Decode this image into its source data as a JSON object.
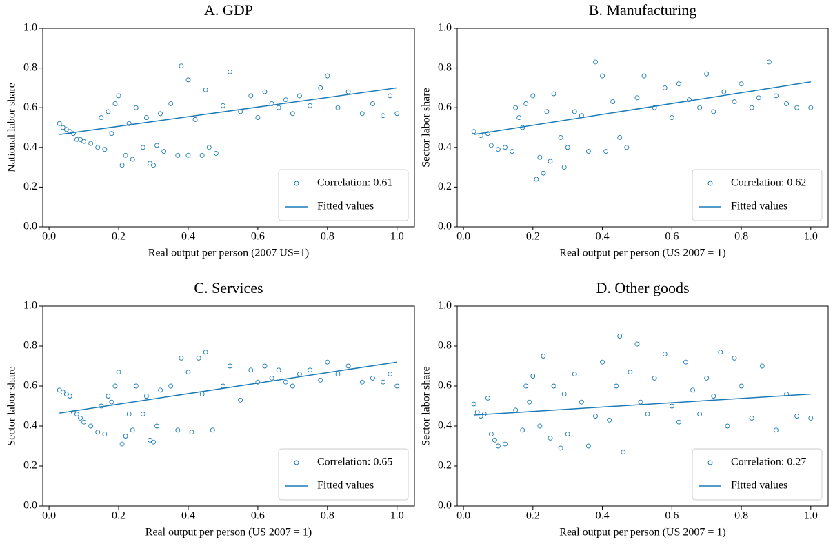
{
  "chart_data": [
    {
      "type": "scatter",
      "title": "A. GDP",
      "xlabel": "Real output per person (2007 US=1)",
      "ylabel": "National labor share",
      "xlim": [
        -0.018,
        1.05
      ],
      "ylim": [
        0,
        1
      ],
      "xticks": [
        {
          "value": 0,
          "label": "0.0"
        },
        0.2,
        0.4,
        0.6,
        0.8,
        {
          "value": 1,
          "label": "1.0"
        }
      ],
      "yticks": [
        {
          "value": 0,
          "label": "0.0"
        },
        0.2,
        0.4,
        0.6,
        0.8,
        {
          "value": 1,
          "label": "1.0"
        }
      ],
      "legend": "lower right",
      "series": [
        {
          "name": "Correlation: 0.61",
          "color": "#1a7ab5",
          "marker": "open-circle",
          "x": [
            0.03,
            0.04,
            0.05,
            0.06,
            0.07,
            0.08,
            0.09,
            0.1,
            0.12,
            0.14,
            0.16,
            0.15,
            0.17,
            0.18,
            0.19,
            0.2,
            0.21,
            0.22,
            0.23,
            0.24,
            0.25,
            0.27,
            0.28,
            0.29,
            0.3,
            0.31,
            0.32,
            0.33,
            0.35,
            0.37,
            0.38,
            0.4,
            0.4,
            0.42,
            0.44,
            0.45,
            0.46,
            0.48,
            0.5,
            0.52,
            0.55,
            0.58,
            0.6,
            0.62,
            0.64,
            0.66,
            0.68,
            0.7,
            0.72,
            0.75,
            0.78,
            0.8,
            0.83,
            0.86,
            0.9,
            0.93,
            0.96,
            0.98,
            1.0
          ],
          "values": [
            0.52,
            0.5,
            0.49,
            0.48,
            0.47,
            0.44,
            0.44,
            0.43,
            0.42,
            0.4,
            0.39,
            0.55,
            0.58,
            0.47,
            0.62,
            0.66,
            0.31,
            0.36,
            0.52,
            0.34,
            0.6,
            0.4,
            0.55,
            0.32,
            0.31,
            0.41,
            0.57,
            0.38,
            0.62,
            0.36,
            0.81,
            0.74,
            0.36,
            0.54,
            0.36,
            0.69,
            0.4,
            0.37,
            0.61,
            0.78,
            0.58,
            0.66,
            0.55,
            0.68,
            0.62,
            0.6,
            0.64,
            0.57,
            0.66,
            0.61,
            0.7,
            0.76,
            0.6,
            0.68,
            0.57,
            0.62,
            0.56,
            0.66,
            0.57
          ]
        },
        {
          "name": "Fitted values",
          "color": "#1a7ab5",
          "type": "line",
          "x": [
            0.03,
            1.0
          ],
          "values": [
            0.465,
            0.7
          ]
        }
      ]
    },
    {
      "type": "scatter",
      "title": "B. Manufacturing",
      "xlabel": "Real output per person (US 2007 = 1)",
      "ylabel": "Sector labor share",
      "xlim": [
        -0.018,
        1.05
      ],
      "ylim": [
        0,
        1
      ],
      "xticks": [
        {
          "value": 0,
          "label": "0.0"
        },
        0.2,
        0.4,
        0.6,
        0.8,
        {
          "value": 1,
          "label": "1.0"
        }
      ],
      "yticks": [
        {
          "value": 0,
          "label": "0.0"
        },
        0.2,
        0.4,
        0.6,
        0.8,
        {
          "value": 1,
          "label": "1.0"
        }
      ],
      "legend": "lower right",
      "series": [
        {
          "name": "Correlation: 0.62",
          "color": "#1a7ab5",
          "marker": "open-circle",
          "x": [
            0.03,
            0.05,
            0.07,
            0.08,
            0.1,
            0.12,
            0.14,
            0.15,
            0.16,
            0.17,
            0.18,
            0.2,
            0.21,
            0.22,
            0.23,
            0.24,
            0.25,
            0.26,
            0.28,
            0.29,
            0.3,
            0.32,
            0.34,
            0.36,
            0.38,
            0.4,
            0.41,
            0.43,
            0.45,
            0.47,
            0.5,
            0.52,
            0.55,
            0.58,
            0.6,
            0.62,
            0.65,
            0.68,
            0.7,
            0.72,
            0.75,
            0.78,
            0.8,
            0.83,
            0.85,
            0.88,
            0.9,
            0.93,
            0.96,
            1.0
          ],
          "values": [
            0.48,
            0.46,
            0.47,
            0.41,
            0.39,
            0.4,
            0.38,
            0.6,
            0.55,
            0.5,
            0.62,
            0.66,
            0.24,
            0.35,
            0.27,
            0.58,
            0.33,
            0.67,
            0.45,
            0.3,
            0.4,
            0.58,
            0.56,
            0.38,
            0.83,
            0.76,
            0.38,
            0.63,
            0.45,
            0.4,
            0.65,
            0.76,
            0.6,
            0.7,
            0.55,
            0.72,
            0.64,
            0.6,
            0.77,
            0.58,
            0.68,
            0.63,
            0.72,
            0.6,
            0.65,
            0.83,
            0.66,
            0.62,
            0.6,
            0.6
          ]
        },
        {
          "name": "Fitted values",
          "color": "#1a7ab5",
          "type": "line",
          "x": [
            0.03,
            1.0
          ],
          "values": [
            0.465,
            0.73
          ]
        }
      ]
    },
    {
      "type": "scatter",
      "title": "C. Services",
      "xlabel": "Real output per person (US 2007 = 1)",
      "ylabel": "Sector labor share",
      "xlim": [
        -0.018,
        1.05
      ],
      "ylim": [
        0,
        1
      ],
      "xticks": [
        {
          "value": 0,
          "label": "0.0"
        },
        0.2,
        0.4,
        0.6,
        0.8,
        {
          "value": 1,
          "label": "1.0"
        }
      ],
      "yticks": [
        {
          "value": 0,
          "label": "0.0"
        },
        0.2,
        0.4,
        0.6,
        0.8,
        {
          "value": 1,
          "label": "1.0"
        }
      ],
      "legend": "lower right",
      "series": [
        {
          "name": "Correlation: 0.65",
          "color": "#1a7ab5",
          "marker": "open-circle",
          "x": [
            0.03,
            0.04,
            0.05,
            0.06,
            0.07,
            0.08,
            0.09,
            0.1,
            0.12,
            0.14,
            0.16,
            0.15,
            0.17,
            0.18,
            0.19,
            0.2,
            0.21,
            0.22,
            0.23,
            0.24,
            0.25,
            0.27,
            0.28,
            0.29,
            0.3,
            0.31,
            0.32,
            0.35,
            0.37,
            0.38,
            0.4,
            0.41,
            0.43,
            0.44,
            0.45,
            0.47,
            0.5,
            0.52,
            0.55,
            0.58,
            0.6,
            0.62,
            0.64,
            0.66,
            0.68,
            0.7,
            0.72,
            0.75,
            0.78,
            0.8,
            0.83,
            0.86,
            0.9,
            0.93,
            0.96,
            0.98,
            1.0
          ],
          "values": [
            0.58,
            0.57,
            0.56,
            0.55,
            0.47,
            0.46,
            0.44,
            0.42,
            0.4,
            0.37,
            0.36,
            0.5,
            0.55,
            0.52,
            0.6,
            0.67,
            0.31,
            0.35,
            0.46,
            0.38,
            0.6,
            0.46,
            0.55,
            0.33,
            0.32,
            0.4,
            0.58,
            0.6,
            0.38,
            0.74,
            0.67,
            0.37,
            0.74,
            0.56,
            0.77,
            0.38,
            0.6,
            0.7,
            0.53,
            0.68,
            0.62,
            0.7,
            0.64,
            0.68,
            0.62,
            0.6,
            0.66,
            0.68,
            0.63,
            0.72,
            0.66,
            0.7,
            0.62,
            0.64,
            0.62,
            0.66,
            0.6
          ]
        },
        {
          "name": "Fitted values",
          "color": "#1a7ab5",
          "type": "line",
          "x": [
            0.03,
            1.0
          ],
          "values": [
            0.465,
            0.72
          ]
        }
      ]
    },
    {
      "type": "scatter",
      "title": "D. Other goods",
      "xlabel": "Real output per person (US 2007 = 1)",
      "ylabel": "Sector labor share",
      "xlim": [
        -0.018,
        1.05
      ],
      "ylim": [
        0,
        1
      ],
      "xticks": [
        {
          "value": 0,
          "label": "0.0"
        },
        0.2,
        0.4,
        0.6,
        0.8,
        {
          "value": 1,
          "label": "1.0"
        }
      ],
      "yticks": [
        {
          "value": 0,
          "label": "0.0"
        },
        0.2,
        0.4,
        0.6,
        0.8,
        {
          "value": 1,
          "label": "1.0"
        }
      ],
      "legend": "lower right",
      "series": [
        {
          "name": "Correlation: 0.27",
          "color": "#1a7ab5",
          "marker": "open-circle",
          "x": [
            0.03,
            0.04,
            0.05,
            0.06,
            0.07,
            0.08,
            0.09,
            0.1,
            0.12,
            0.15,
            0.17,
            0.18,
            0.19,
            0.2,
            0.22,
            0.23,
            0.25,
            0.26,
            0.28,
            0.29,
            0.3,
            0.32,
            0.34,
            0.36,
            0.38,
            0.4,
            0.42,
            0.44,
            0.45,
            0.46,
            0.48,
            0.5,
            0.51,
            0.53,
            0.55,
            0.58,
            0.6,
            0.62,
            0.64,
            0.66,
            0.68,
            0.7,
            0.72,
            0.74,
            0.76,
            0.78,
            0.8,
            0.83,
            0.86,
            0.9,
            0.93,
            0.96,
            1.0
          ],
          "values": [
            0.51,
            0.47,
            0.45,
            0.46,
            0.54,
            0.36,
            0.33,
            0.3,
            0.31,
            0.48,
            0.38,
            0.6,
            0.52,
            0.65,
            0.4,
            0.75,
            0.34,
            0.6,
            0.29,
            0.56,
            0.36,
            0.66,
            0.52,
            0.3,
            0.45,
            0.72,
            0.43,
            0.6,
            0.85,
            0.27,
            0.67,
            0.81,
            0.52,
            0.46,
            0.64,
            0.76,
            0.5,
            0.42,
            0.72,
            0.58,
            0.46,
            0.64,
            0.55,
            0.77,
            0.4,
            0.74,
            0.6,
            0.44,
            0.7,
            0.38,
            0.56,
            0.45,
            0.44
          ]
        },
        {
          "name": "Fitted values",
          "color": "#1a7ab5",
          "type": "line",
          "x": [
            0.03,
            1.0
          ],
          "values": [
            0.455,
            0.56
          ]
        }
      ]
    }
  ]
}
